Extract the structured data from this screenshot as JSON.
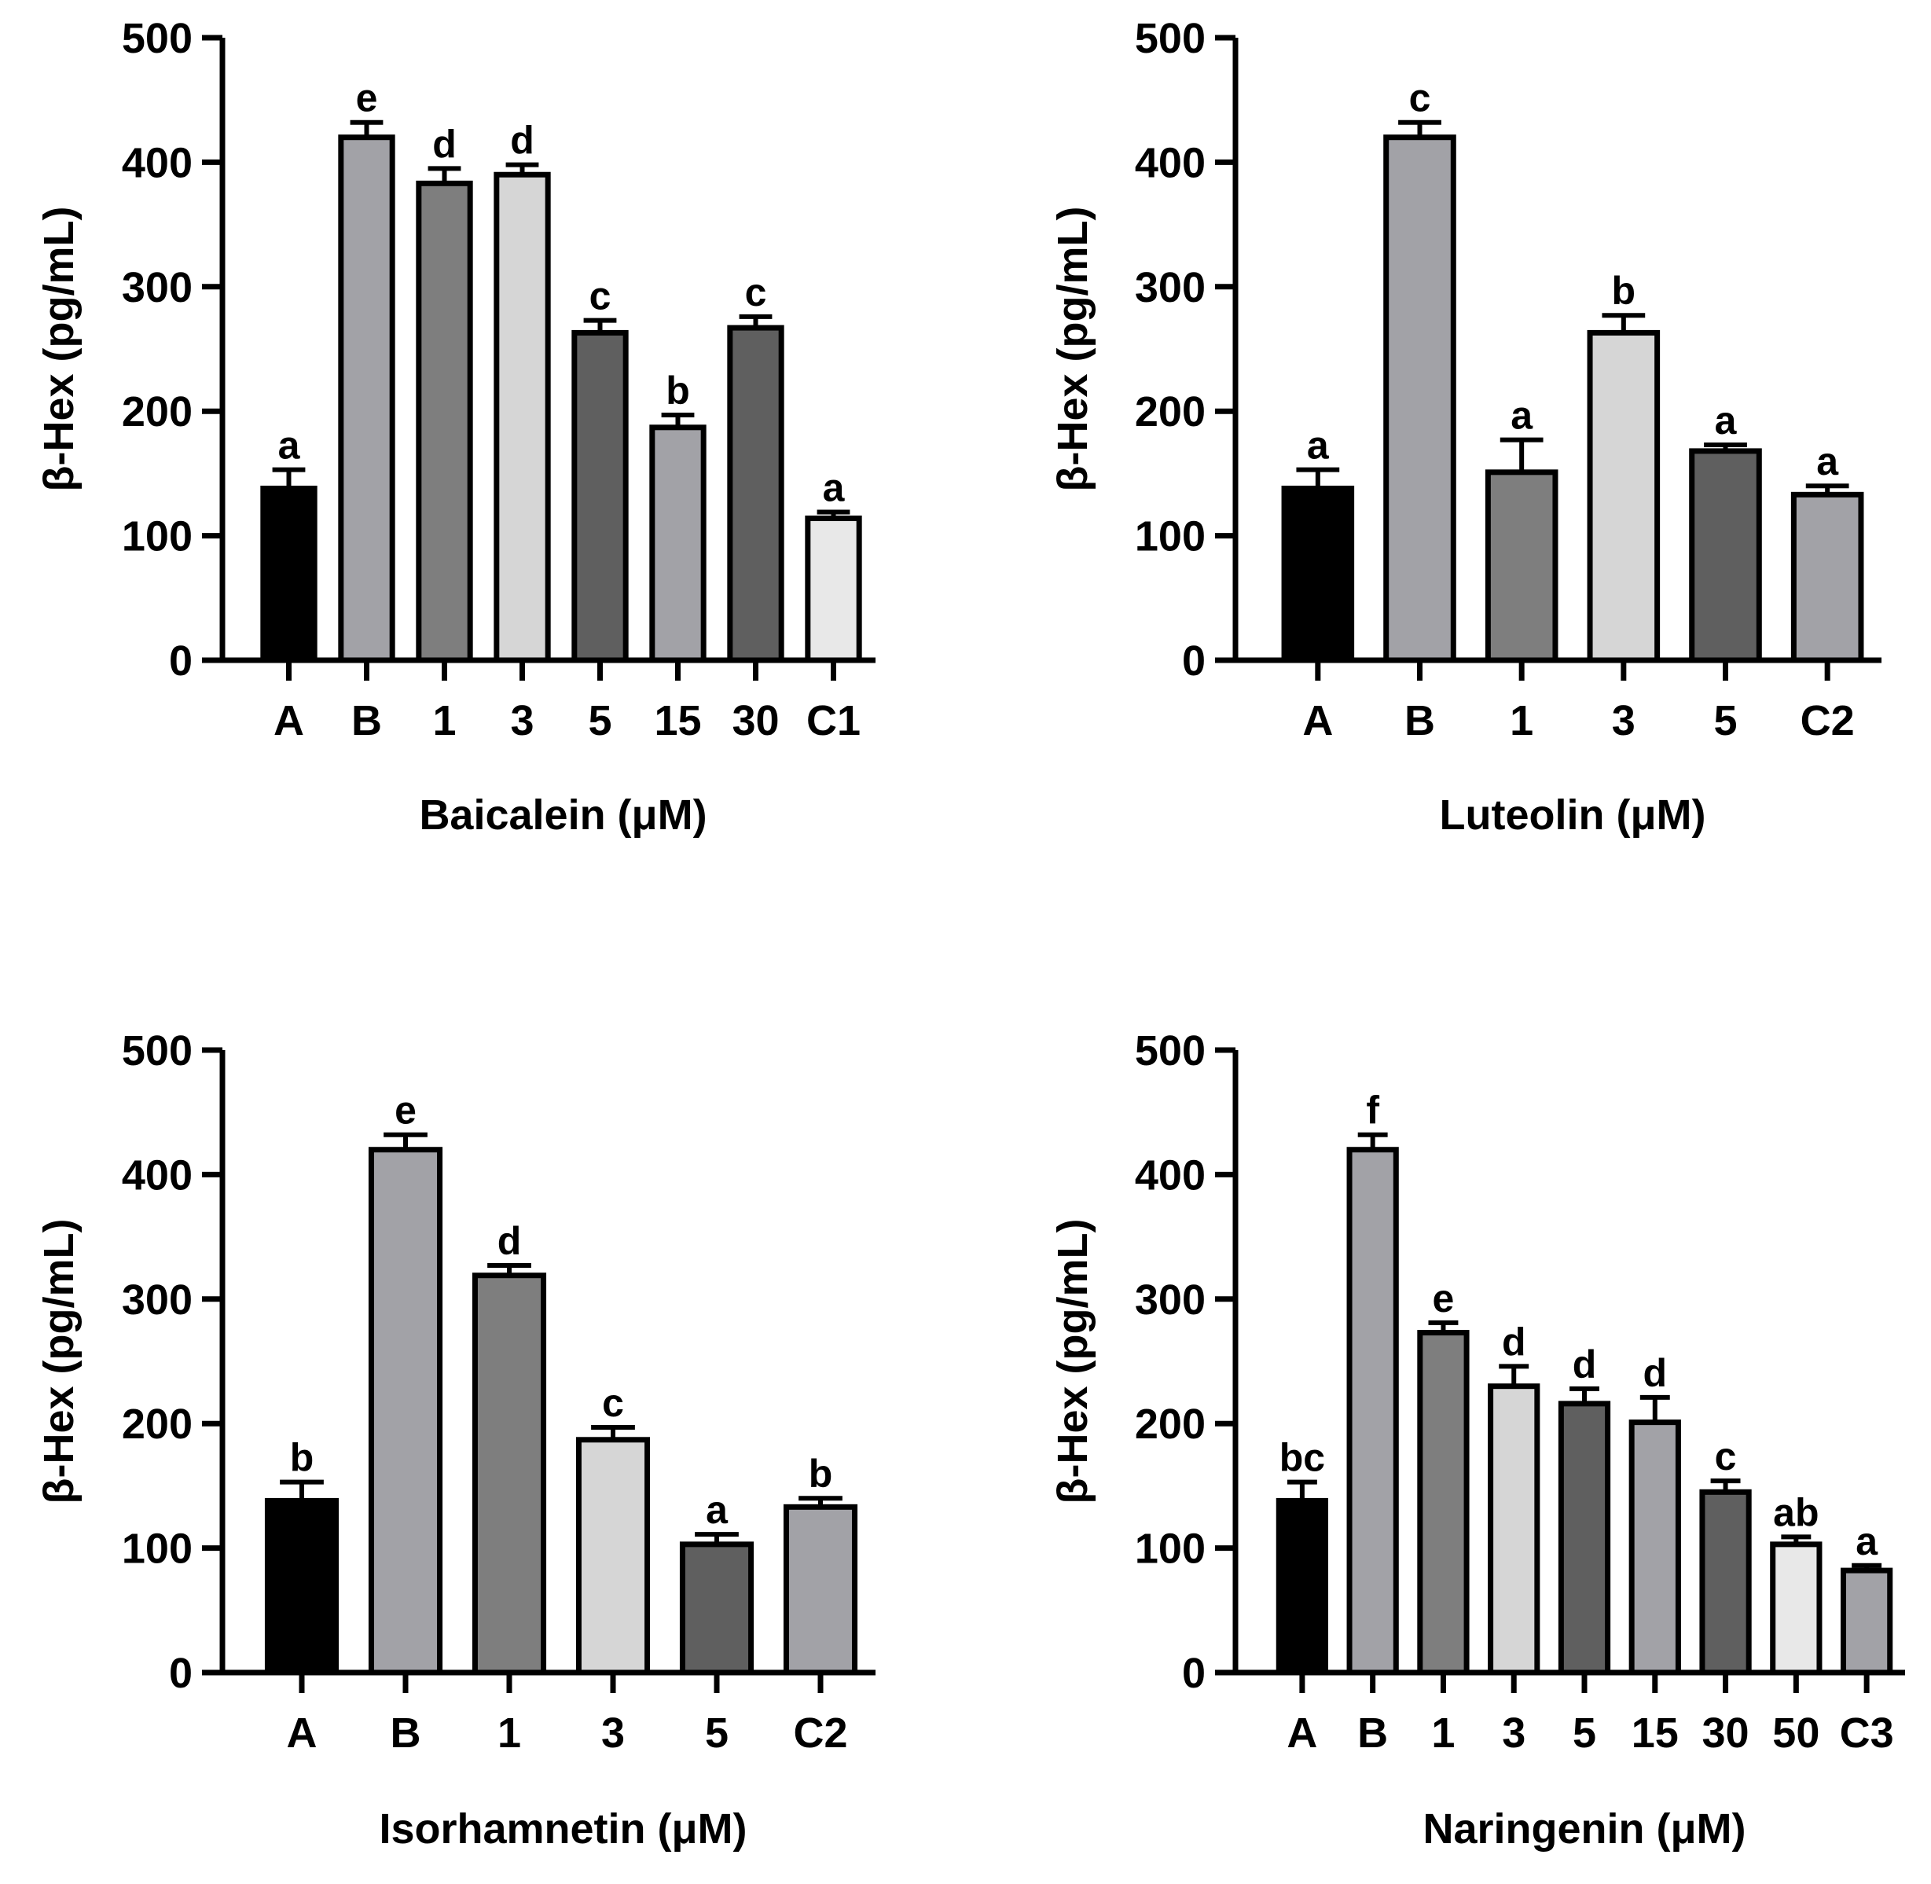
{
  "chart_data": [
    {
      "type": "bar",
      "title": "",
      "xlabel": "Baicalein (μM)",
      "ylabel": "β-Hex (pg/mL)",
      "ylim": [
        0,
        500
      ],
      "yticks": [
        "0",
        "100",
        "200",
        "300",
        "400",
        "500"
      ],
      "categories": [
        "A",
        "B",
        "1",
        "3",
        "5",
        "15",
        "30",
        "C1"
      ],
      "values": [
        138,
        420,
        383,
        390,
        263,
        187,
        267,
        114
      ],
      "errors": [
        15,
        12,
        12,
        8,
        10,
        10,
        9,
        5
      ],
      "significance": [
        "a",
        "e",
        "d",
        "d",
        "c",
        "b",
        "c",
        "a"
      ],
      "colors": [
        "#000000",
        "#a2a2a7",
        "#7e7e7e",
        "#d6d6d6",
        "#5f5f5f",
        "#a2a2a7",
        "#5f5f5f",
        "#e8e8e8"
      ]
    },
    {
      "type": "bar",
      "title": "",
      "xlabel": "Luteolin (μM)",
      "ylabel": "β-Hex (pg/mL)",
      "ylim": [
        0,
        500
      ],
      "yticks": [
        "0",
        "100",
        "200",
        "300",
        "400",
        "500"
      ],
      "categories": [
        "A",
        "B",
        "1",
        "3",
        "5",
        "C2"
      ],
      "values": [
        138,
        420,
        151,
        263,
        168,
        133
      ],
      "errors": [
        15,
        12,
        26,
        14,
        5,
        7
      ],
      "significance": [
        "a",
        "c",
        "a",
        "b",
        "a",
        "a"
      ],
      "colors": [
        "#000000",
        "#a2a2a7",
        "#7e7e7e",
        "#d6d6d6",
        "#5f5f5f",
        "#a2a2a7"
      ]
    },
    {
      "type": "bar",
      "title": "",
      "xlabel": "Isorhamnetin (μM)",
      "ylabel": "β-Hex (pg/mL)",
      "ylim": [
        0,
        500
      ],
      "yticks": [
        "0",
        "100",
        "200",
        "300",
        "400",
        "500"
      ],
      "categories": [
        "A",
        "B",
        "1",
        "3",
        "5",
        "C2"
      ],
      "values": [
        138,
        420,
        319,
        187,
        103,
        133
      ],
      "errors": [
        15,
        12,
        8,
        10,
        8,
        7
      ],
      "significance": [
        "b",
        "e",
        "d",
        "c",
        "a",
        "b"
      ],
      "colors": [
        "#000000",
        "#a2a2a7",
        "#7e7e7e",
        "#d6d6d6",
        "#5f5f5f",
        "#a2a2a7"
      ]
    },
    {
      "type": "bar",
      "title": "",
      "xlabel": "Naringenin (μM)",
      "ylabel": "β-Hex (pg/mL)",
      "ylim": [
        0,
        500
      ],
      "yticks": [
        "0",
        "100",
        "200",
        "300",
        "400",
        "500"
      ],
      "categories": [
        "A",
        "B",
        "1",
        "3",
        "5",
        "15",
        "30",
        "50",
        "C3"
      ],
      "values": [
        138,
        420,
        273,
        230,
        216,
        201,
        145,
        103,
        82
      ],
      "errors": [
        15,
        12,
        8,
        16,
        12,
        20,
        9,
        6,
        4
      ],
      "significance": [
        "bc",
        "f",
        "e",
        "d",
        "d",
        "d",
        "c",
        "ab",
        "a"
      ],
      "colors": [
        "#000000",
        "#a2a2a7",
        "#7e7e7e",
        "#d6d6d6",
        "#5f5f5f",
        "#a2a2a7",
        "#5f5f5f",
        "#e8e8e8",
        "#a2a2a7"
      ]
    }
  ]
}
